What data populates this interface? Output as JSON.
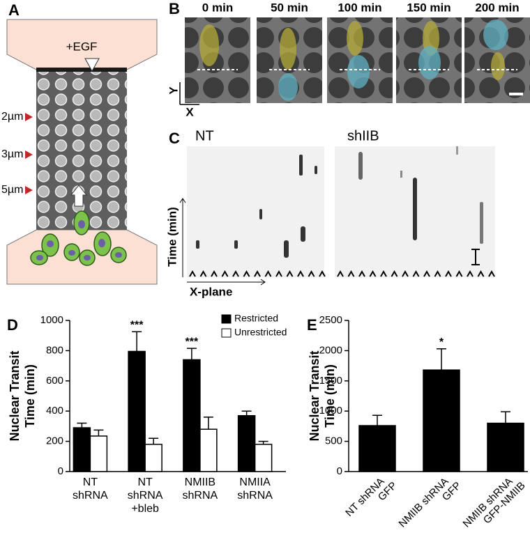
{
  "panels": {
    "a": {
      "label": "A",
      "stimulus": "+EGF",
      "constrictions": [
        "2µm",
        "3µm",
        "5µm"
      ]
    },
    "b": {
      "label": "B",
      "times": [
        "0 min",
        "50 min",
        "100 min",
        "150 min",
        "200 min"
      ],
      "y_axis": "Y",
      "x_axis": "X"
    },
    "c": {
      "label": "C",
      "conditions": [
        "NT",
        "shIIB"
      ],
      "y_axis": "Time (min)",
      "x_axis": "X-plane"
    }
  },
  "chart_data": [
    {
      "type": "bar",
      "panel": "D",
      "ylabel": [
        "Nuclear Transit",
        "Time (min)"
      ],
      "categories": [
        [
          "NT",
          "shRNA"
        ],
        [
          "NT",
          "shRNA",
          "+bleb"
        ],
        [
          "NMIIB",
          "shRNA"
        ],
        [
          "NMIIA",
          "shRNA"
        ]
      ],
      "series": [
        {
          "name": "Restricted",
          "color": "#000000",
          "values": [
            290,
            795,
            740,
            370
          ],
          "errors": [
            30,
            130,
            75,
            30
          ],
          "significance": [
            null,
            "***",
            "***",
            null
          ]
        },
        {
          "name": "Unrestricted",
          "color": "#ffffff",
          "values": [
            235,
            180,
            280,
            180
          ],
          "errors": [
            40,
            40,
            80,
            20
          ]
        }
      ],
      "ylim": [
        0,
        1000
      ],
      "yticks": [
        0,
        200,
        400,
        600,
        800,
        1000
      ],
      "legend": "upper right"
    },
    {
      "type": "bar",
      "panel": "E",
      "ylabel": [
        "Nuclear Transit",
        "Time (min)"
      ],
      "categories": [
        [
          "NT shRNA",
          "GFP"
        ],
        [
          "NMIIB shRNA",
          "GFP"
        ],
        [
          "NMIIB shRNA",
          "GFP-NMIIB"
        ]
      ],
      "series": [
        {
          "color": "#000000",
          "values": [
            760,
            1680,
            800
          ],
          "errors": [
            170,
            350,
            190
          ],
          "significance": [
            null,
            "*",
            null
          ]
        }
      ],
      "ylim": [
        0,
        2500
      ],
      "yticks": [
        0,
        500,
        1000,
        1500,
        2000,
        2500
      ]
    }
  ]
}
